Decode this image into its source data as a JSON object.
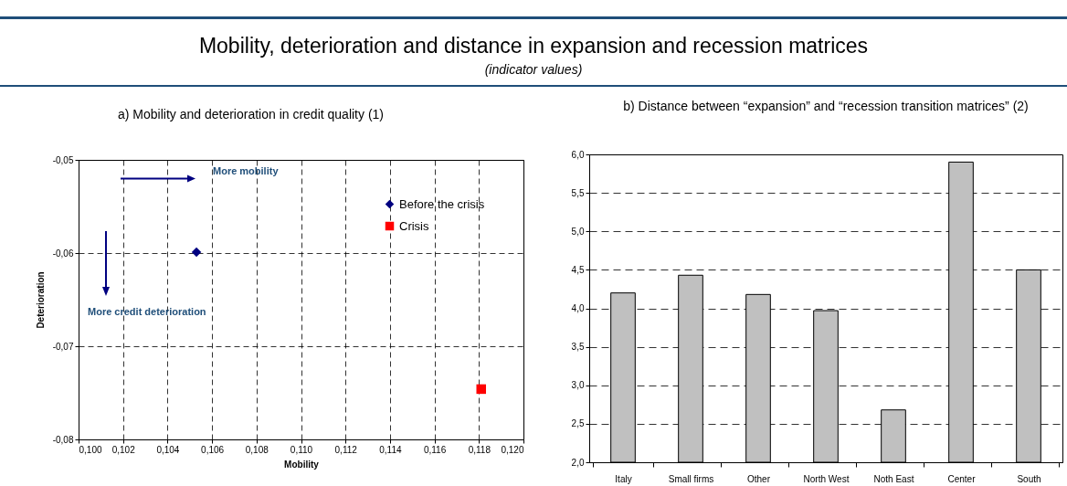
{
  "chart_data": [
    {
      "type": "other",
      "title": "Mobility, deterioration and distance in expansion and recession matrices",
      "subtitle": "(indicator values)"
    },
    {
      "type": "scatter",
      "title": "a) Mobility and deterioration in credit quality (1)",
      "xlabel": "Mobility",
      "ylabel": "Deterioration",
      "xlim": [
        0.1,
        0.12
      ],
      "xticks": [
        {
          "value": 0.1,
          "label": "0,100"
        },
        {
          "value": 0.102,
          "label": "0,102"
        },
        {
          "value": 0.104,
          "label": "0,104"
        },
        {
          "value": 0.106,
          "label": "0,106"
        },
        {
          "value": 0.108,
          "label": "0,108"
        },
        {
          "value": 0.11,
          "label": "0,110"
        },
        {
          "value": 0.112,
          "label": "0,112"
        },
        {
          "value": 0.114,
          "label": "0,114"
        },
        {
          "value": 0.116,
          "label": "0,116"
        },
        {
          "value": 0.118,
          "label": "0,118"
        },
        {
          "value": 0.12,
          "label": "0,120"
        }
      ],
      "ylim": [
        -0.08,
        -0.05
      ],
      "yticks": [
        {
          "value": -0.08,
          "label": "-0,08"
        },
        {
          "value": -0.07,
          "label": "-0,07"
        },
        {
          "value": -0.06,
          "label": "-0,06"
        },
        {
          "value": -0.05,
          "label": "-0,05"
        }
      ],
      "grid": true,
      "legend": "top right",
      "annotations": [
        "More mobility",
        "More credit deterioration"
      ],
      "series": [
        {
          "name": "Before the crisis",
          "color": "#000080",
          "marker": "diamond",
          "x": [
            0.1053
          ],
          "values": [
            -0.0599
          ]
        },
        {
          "name": "Crisis",
          "color": "#ff0000",
          "marker": "square",
          "x": [
            0.1181
          ],
          "values": [
            -0.0746
          ]
        }
      ]
    },
    {
      "type": "bar",
      "title": "b) Distance between “expansion” and “recession transition matrices” (2)",
      "categories": [
        "Italy",
        "Small firms",
        "Other",
        "North West",
        "Noth East",
        "Center",
        "South"
      ],
      "values": [
        4.2,
        4.43,
        4.18,
        3.97,
        2.68,
        5.9,
        4.5
      ],
      "color": "#c0c0c0",
      "ylim": [
        2,
        6
      ],
      "yticks": [
        {
          "value": 2,
          "label": "2,0"
        },
        {
          "value": 2.5,
          "label": "2,5"
        },
        {
          "value": 3,
          "label": "3,0"
        },
        {
          "value": 3.5,
          "label": "3,5"
        },
        {
          "value": 4,
          "label": "4,0"
        },
        {
          "value": 4.5,
          "label": "4,5"
        },
        {
          "value": 5,
          "label": "5,0"
        },
        {
          "value": 5.5,
          "label": "5,5"
        },
        {
          "value": 6,
          "label": "6,0"
        }
      ],
      "grid": "y"
    }
  ]
}
